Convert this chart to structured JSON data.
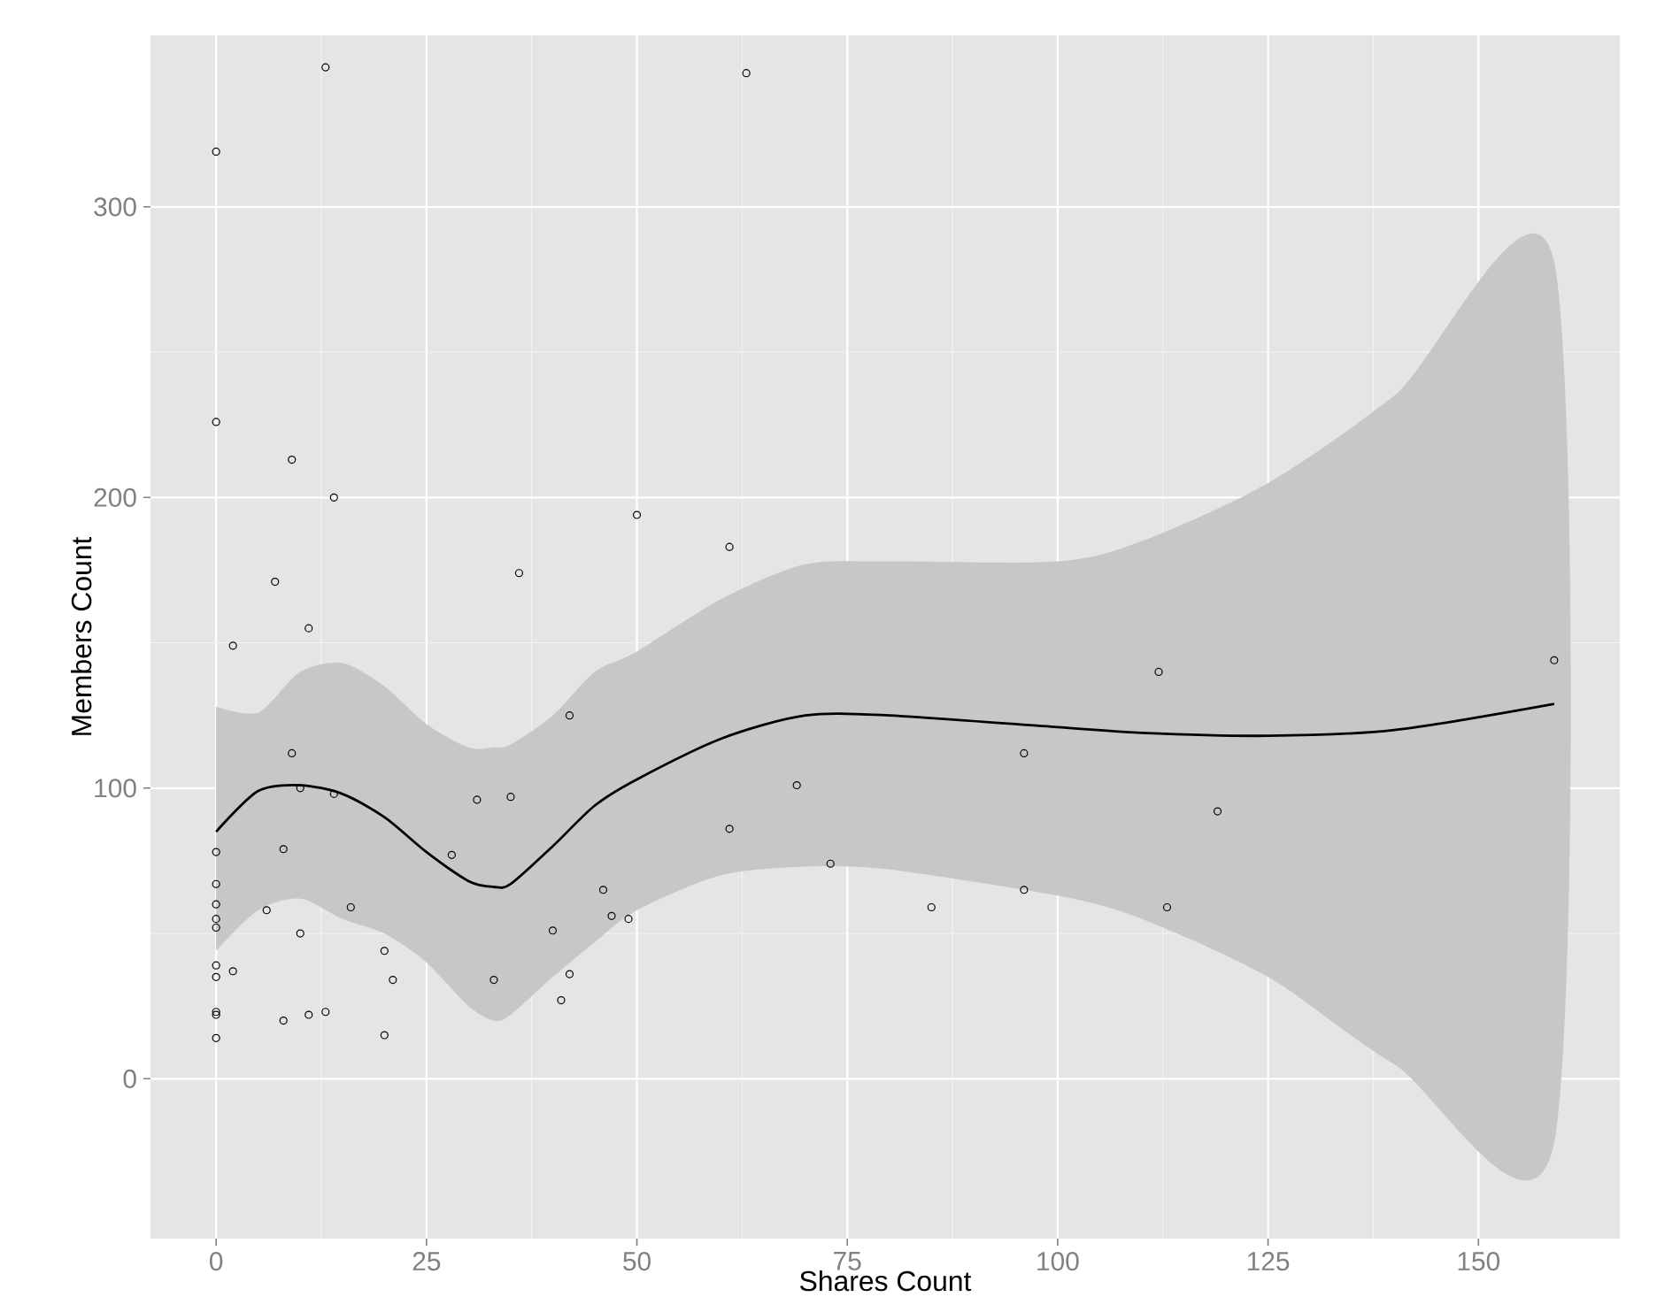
{
  "chart_data": {
    "type": "scatter",
    "xlabel": "Shares Count",
    "ylabel": "Members Count",
    "xlim": [
      -7.8,
      166.8
    ],
    "ylim": [
      -55,
      359
    ],
    "xticks": [
      0,
      25,
      50,
      75,
      100,
      125,
      150
    ],
    "yticks": [
      0,
      100,
      200,
      300
    ],
    "grid": true,
    "series": [
      {
        "marker": "circle",
        "color": "#000000",
        "x": [
          0,
          0,
          13,
          63,
          9,
          14,
          50,
          61,
          36,
          7,
          11,
          2,
          159,
          112,
          42,
          9,
          96,
          69,
          10,
          14,
          31,
          35,
          61,
          8,
          0,
          28,
          73,
          0,
          46,
          96,
          0,
          6,
          16,
          85,
          113,
          0,
          0,
          47,
          49,
          40,
          10,
          20,
          119,
          0,
          2,
          0,
          42,
          21,
          33,
          41,
          0,
          0,
          11,
          13,
          8,
          20,
          0
        ],
        "values": [
          319,
          226,
          348,
          346,
          213,
          200,
          194,
          183,
          174,
          171,
          155,
          149,
          144,
          140,
          125,
          112,
          112,
          101,
          100,
          98,
          96,
          97,
          86,
          79,
          78,
          77,
          74,
          67,
          65,
          65,
          60,
          58,
          59,
          59,
          59,
          55,
          52,
          56,
          55,
          51,
          50,
          44,
          92,
          39,
          37,
          35,
          36,
          34,
          34,
          27,
          23,
          22,
          22,
          23,
          20,
          15,
          14
        ]
      },
      {
        "type": "line",
        "line_style": "solid",
        "color": "#000000",
        "x": [
          0,
          5,
          10,
          15,
          20,
          25,
          30,
          33,
          35,
          40,
          45,
          50,
          60,
          70,
          80,
          100,
          110,
          125,
          140,
          159
        ],
        "values": [
          85,
          99,
          101,
          98,
          90,
          78,
          68,
          66,
          67,
          80,
          94,
          103,
          117,
          125,
          125,
          121,
          119,
          118,
          120,
          129
        ],
        "lower": [
          44,
          58,
          62,
          55,
          50,
          40,
          25,
          20,
          22,
          35,
          47,
          58,
          70,
          73,
          72,
          63,
          55,
          35,
          5,
          -22
        ],
        "upper": [
          128,
          126,
          140,
          143,
          135,
          122,
          114,
          114,
          115,
          125,
          140,
          147,
          165,
          177,
          178,
          178,
          185,
          205,
          235,
          281
        ]
      }
    ]
  }
}
